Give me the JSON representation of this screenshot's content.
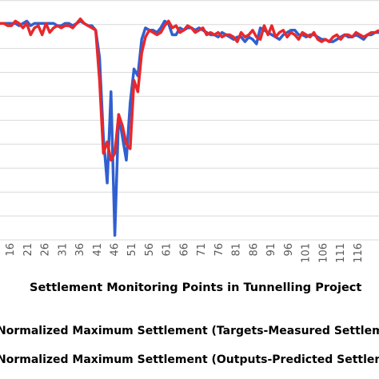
{
  "chart_data": {
    "type": "line",
    "xlabel": "Settlement Monitoring Points in Tunnelling Project",
    "x_tick_labels": [
      "16",
      "21",
      "26",
      "31",
      "36",
      "41",
      "46",
      "51",
      "56",
      "61",
      "66",
      "71",
      "76",
      "81",
      "86",
      "91",
      "96",
      "101",
      "106",
      "111",
      "116"
    ],
    "x_start": 13,
    "x_end": 122,
    "grid": true,
    "legend_position": "bottom",
    "colors": {
      "measured": "#3060d0",
      "predicted": "#e8282c",
      "grid": "#d9d9d9"
    },
    "series": [
      {
        "name": "Normalized Maximum Settlement (Targets-Measured Settlement)",
        "color": "#3060d0",
        "values": [
          0.95,
          0.95,
          0.95,
          0.95,
          0.95,
          0.94,
          0.95,
          0.96,
          0.94,
          0.95,
          0.95,
          0.95,
          0.95,
          0.95,
          0.95,
          0.94,
          0.94,
          0.95,
          0.95,
          0.94,
          0.95,
          0.96,
          0.95,
          0.94,
          0.94,
          0.92,
          0.8,
          0.45,
          0.25,
          0.65,
          0.02,
          0.55,
          0.45,
          0.35,
          0.6,
          0.75,
          0.72,
          0.88,
          0.93,
          0.92,
          0.92,
          0.91,
          0.93,
          0.96,
          0.95,
          0.9,
          0.9,
          0.93,
          0.92,
          0.93,
          0.93,
          0.92,
          0.93,
          0.92,
          0.91,
          0.9,
          0.9,
          0.89,
          0.91,
          0.9,
          0.89,
          0.88,
          0.89,
          0.89,
          0.87,
          0.89,
          0.88,
          0.86,
          0.93,
          0.92,
          0.91,
          0.9,
          0.89,
          0.88,
          0.9,
          0.91,
          0.92,
          0.92,
          0.9,
          0.9,
          0.89,
          0.9,
          0.9,
          0.89,
          0.88,
          0.88,
          0.87,
          0.87,
          0.88,
          0.89,
          0.9,
          0.89,
          0.89,
          0.9,
          0.89,
          0.88,
          0.9,
          0.9,
          0.91,
          0.91
        ]
      },
      {
        "name": "Normalized Maximum Settlement (Outputs-Predicted Settlement)",
        "color": "#e8282c",
        "values": [
          0.95,
          0.95,
          0.94,
          0.94,
          0.96,
          0.95,
          0.93,
          0.95,
          0.9,
          0.93,
          0.94,
          0.9,
          0.95,
          0.91,
          0.93,
          0.94,
          0.93,
          0.94,
          0.94,
          0.93,
          0.95,
          0.97,
          0.95,
          0.94,
          0.93,
          0.92,
          0.7,
          0.38,
          0.43,
          0.35,
          0.38,
          0.55,
          0.5,
          0.42,
          0.4,
          0.7,
          0.65,
          0.82,
          0.89,
          0.92,
          0.91,
          0.9,
          0.91,
          0.94,
          0.96,
          0.93,
          0.94,
          0.91,
          0.92,
          0.94,
          0.93,
          0.91,
          0.92,
          0.93,
          0.9,
          0.91,
          0.9,
          0.91,
          0.89,
          0.9,
          0.9,
          0.89,
          0.87,
          0.91,
          0.89,
          0.9,
          0.92,
          0.89,
          0.88,
          0.94,
          0.9,
          0.94,
          0.89,
          0.91,
          0.92,
          0.89,
          0.91,
          0.9,
          0.88,
          0.91,
          0.9,
          0.89,
          0.91,
          0.88,
          0.87,
          0.88,
          0.87,
          0.89,
          0.9,
          0.88,
          0.9,
          0.9,
          0.89,
          0.91,
          0.9,
          0.89,
          0.9,
          0.91,
          0.91,
          0.92
        ]
      }
    ]
  }
}
